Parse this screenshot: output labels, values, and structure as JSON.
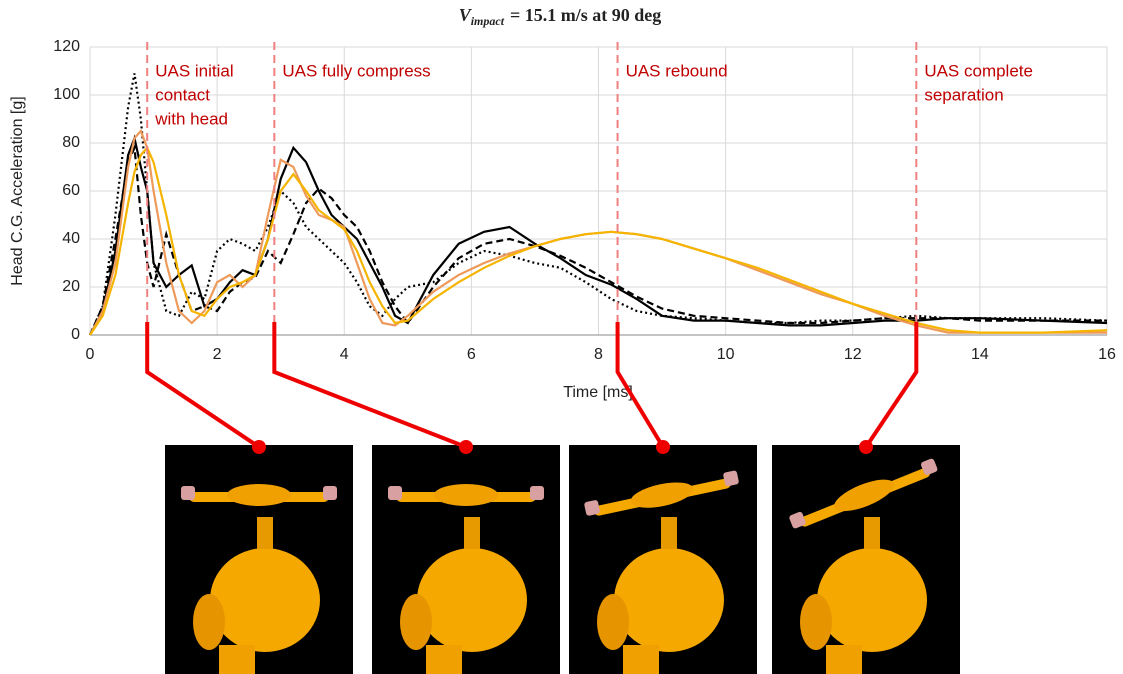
{
  "chart_data": {
    "type": "line",
    "title": {
      "symbol": "V",
      "subscript": "impact",
      "rest": "= 15.1 m/s at 90 deg"
    },
    "x_label": "Time [ms]",
    "y_label": "Head C.G. Acceleration [g]",
    "x": [
      0,
      0.2,
      0.4,
      0.6,
      0.7,
      0.8,
      0.9,
      1.0,
      1.2,
      1.4,
      1.6,
      1.8,
      2.0,
      2.2,
      2.4,
      2.6,
      2.8,
      3.0,
      3.2,
      3.4,
      3.6,
      3.8,
      4.0,
      4.2,
      4.4,
      4.6,
      4.8,
      5.0,
      5.4,
      5.8,
      6.2,
      6.6,
      7.0,
      7.4,
      7.8,
      8.2,
      8.6,
      9.0,
      9.5,
      10,
      10.5,
      11,
      11.5,
      12,
      12.5,
      13,
      13.5,
      14,
      15,
      16
    ],
    "series": [
      {
        "color": "#000000",
        "dash": "solid",
        "values": [
          0,
          10,
          35,
          75,
          82,
          70,
          60,
          30,
          20,
          25,
          29,
          12,
          15,
          22,
          27,
          25,
          40,
          65,
          78,
          72,
          60,
          50,
          45,
          40,
          30,
          20,
          8,
          5,
          25,
          38,
          43,
          45,
          38,
          32,
          25,
          21,
          15,
          8,
          6,
          6,
          5,
          4,
          4,
          5,
          6,
          6,
          7,
          7,
          6,
          5
        ]
      },
      {
        "color": "#000000",
        "dash": "dashed",
        "values": [
          0,
          12,
          40,
          72,
          78,
          50,
          30,
          20,
          42,
          25,
          10,
          12,
          10,
          18,
          22,
          24,
          35,
          30,
          42,
          55,
          61,
          57,
          50,
          45,
          35,
          22,
          12,
          5,
          20,
          32,
          38,
          40,
          37,
          33,
          28,
          22,
          16,
          11,
          8,
          7,
          6,
          5,
          5,
          6,
          7,
          7,
          7,
          6,
          6,
          6
        ]
      },
      {
        "color": "#000000",
        "dash": "dotted",
        "values": [
          0,
          12,
          50,
          95,
          109,
          90,
          60,
          30,
          10,
          8,
          18,
          15,
          35,
          40,
          38,
          35,
          45,
          60,
          55,
          45,
          40,
          35,
          30,
          22,
          12,
          8,
          15,
          20,
          22,
          30,
          35,
          33,
          30,
          28,
          22,
          15,
          10,
          8,
          7,
          6,
          5,
          5,
          6,
          6,
          7,
          8,
          7,
          7,
          7,
          6
        ]
      },
      {
        "color": "#EE9A5A",
        "dash": "solid",
        "values": [
          0,
          10,
          30,
          70,
          82,
          85,
          78,
          60,
          30,
          10,
          5,
          10,
          22,
          25,
          20,
          25,
          50,
          73,
          70,
          58,
          50,
          48,
          45,
          30,
          15,
          5,
          4,
          8,
          18,
          25,
          30,
          34,
          37,
          40,
          42,
          43,
          42,
          40,
          36,
          32,
          27,
          22,
          17,
          13,
          8,
          4,
          1,
          1,
          1,
          1
        ]
      },
      {
        "color": "#F5B400",
        "dash": "solid",
        "values": [
          0,
          8,
          25,
          55,
          68,
          75,
          78,
          72,
          50,
          25,
          10,
          8,
          15,
          20,
          22,
          25,
          40,
          60,
          67,
          60,
          52,
          48,
          44,
          35,
          22,
          12,
          5,
          6,
          15,
          22,
          28,
          33,
          37,
          40,
          42,
          43,
          42,
          40,
          36,
          32,
          28,
          23,
          18,
          13,
          9,
          5,
          2,
          1,
          1,
          2
        ]
      }
    ],
    "xlim": [
      0,
      16
    ],
    "xticks": [
      0,
      2,
      4,
      6,
      8,
      10,
      12,
      14,
      16
    ],
    "ylim": [
      0,
      120
    ],
    "yticks": [
      0,
      20,
      40,
      60,
      80,
      100,
      120
    ],
    "grid": true,
    "events": [
      {
        "x": 0.9,
        "label": [
          "UAS initial",
          "contact",
          "with head"
        ]
      },
      {
        "x": 2.9,
        "label": [
          "UAS fully compress"
        ]
      },
      {
        "x": 8.3,
        "label": [
          "UAS rebound"
        ]
      },
      {
        "x": 13.0,
        "label": [
          "UAS complete",
          "separation"
        ]
      }
    ]
  }
}
